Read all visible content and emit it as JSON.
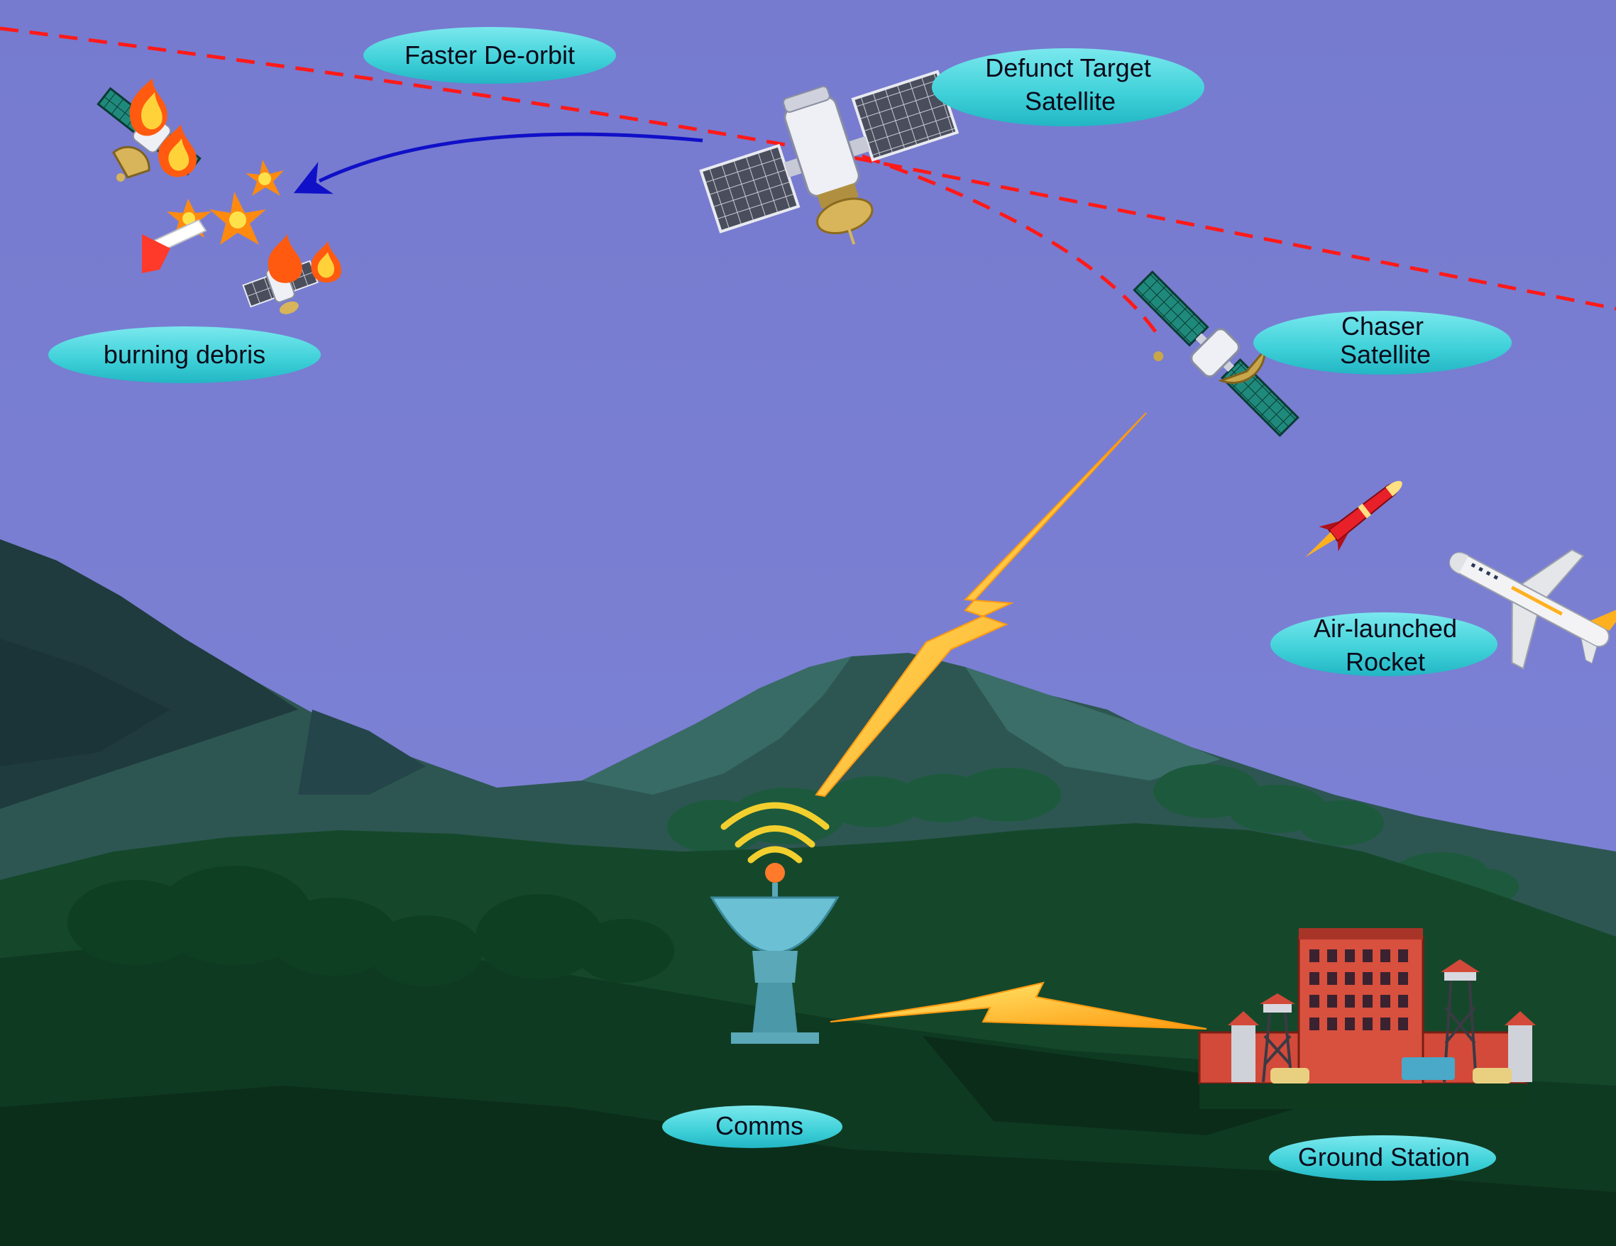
{
  "labels": {
    "faster_deorbit": "Faster De-orbit",
    "defunct_line1": "Defunct Target",
    "defunct_line2": "Satellite",
    "burning_debris": "burning debris",
    "chaser_line1": "Chaser",
    "chaser_line2": "Satellite",
    "air_line1": "Air-launched",
    "air_line2": "Rocket",
    "comms": "Comms",
    "ground_station": "Ground Station"
  },
  "colors": {
    "sky": "#7a7fd0",
    "orbit_dash": "#ff1a1a",
    "deorbit_arrow": "#1010c8",
    "label_bubble": "#3ed0d8",
    "lightning": "#ffb020",
    "hills_far": "#2f5a55",
    "hills_near": "#14452a"
  },
  "icons": {
    "defunct_satellite": "satellite-icon",
    "chaser_satellite": "satellite-icon",
    "debris": "fire-icon",
    "rocket": "rocket-icon",
    "airplane": "airplane-icon",
    "dish": "satellite-dish-icon",
    "building": "building-icon"
  }
}
